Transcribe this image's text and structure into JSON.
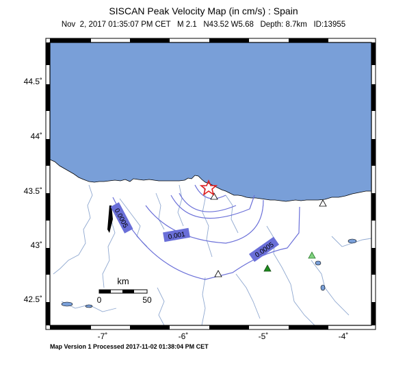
{
  "header": {
    "title": "SISCAN Peak Velocity Map (in cm/s) : Spain",
    "subtitle": "Nov  2, 2017 01:35:07 PM CET   M 2.1   N43.52 W5.68   Depth: 8.7km   ID:13955"
  },
  "footer": {
    "text": "Map Version 1 Processed 2017-11-02 01:38:04 PM CET"
  },
  "map": {
    "lon_range": [
      -7.7,
      -3.65
    ],
    "lat_range": [
      42.35,
      44.8
    ],
    "colors": {
      "sea": "#799fd8",
      "land": "#ffffff",
      "contour": "#6a6fd8",
      "river": "#8fa8d0",
      "epicenter": "#e02020",
      "station_green_dark": "#1e8c1e",
      "station_green_light": "#7fd27f"
    },
    "lon_ticks": [
      {
        "value": -7,
        "label": "-7˚"
      },
      {
        "value": -6,
        "label": "-6˚"
      },
      {
        "value": -5,
        "label": "-5˚"
      },
      {
        "value": -4,
        "label": "-4˚"
      }
    ],
    "lat_ticks": [
      {
        "value": 44.5,
        "label": "44.5˚"
      },
      {
        "value": 44,
        "label": "44˚"
      },
      {
        "value": 43.5,
        "label": "43.5˚"
      },
      {
        "value": 43,
        "label": "43˚"
      },
      {
        "value": 42.5,
        "label": "42.5˚"
      }
    ],
    "epicenter": {
      "lon": -5.68,
      "lat": 43.52,
      "icon": "star-icon"
    },
    "stations": [
      {
        "lon": -5.62,
        "lat": 43.46,
        "type": "open",
        "icon": "triangle-icon"
      },
      {
        "lon": -4.27,
        "lat": 43.4,
        "type": "open",
        "icon": "triangle-icon"
      },
      {
        "lon": -5.62,
        "lat": 42.72,
        "type": "open",
        "icon": "triangle-icon"
      },
      {
        "lon": -4.98,
        "lat": 42.77,
        "type": "dark-green",
        "icon": "triangle-icon"
      },
      {
        "lon": -4.35,
        "lat": 42.89,
        "type": "light-green",
        "icon": "triangle-icon"
      }
    ],
    "contours": [
      {
        "label": "0.0005",
        "rotation": 65
      },
      {
        "label": "0.001",
        "rotation": -10
      },
      {
        "label": "0.0005",
        "rotation": -35
      }
    ],
    "scale_bar": {
      "unit": "km",
      "labels": [
        "0",
        "50"
      ]
    }
  }
}
